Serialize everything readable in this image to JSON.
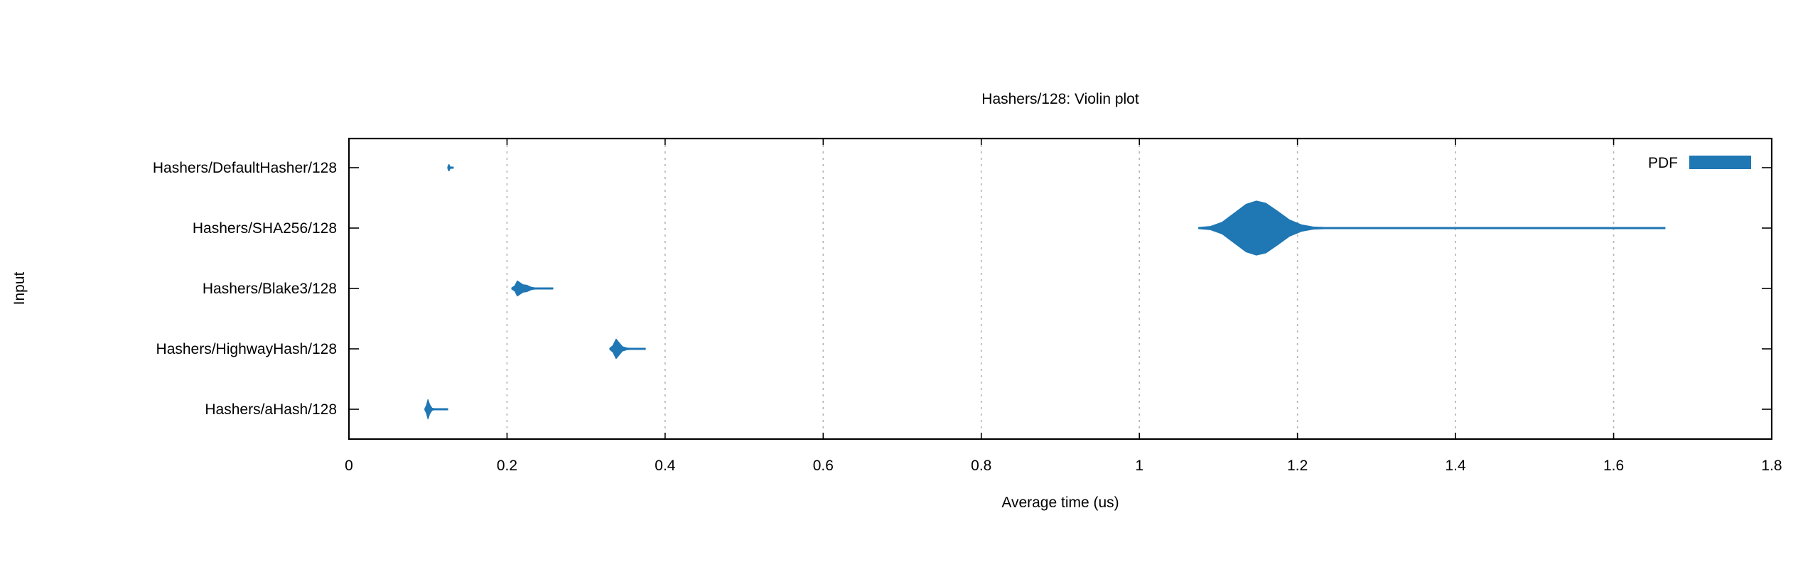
{
  "chart_data": {
    "type": "violin",
    "title": "Hashers/128: Violin plot",
    "xlabel": "Average time (us)",
    "ylabel": "Input",
    "xlim": [
      0,
      1.8
    ],
    "x_ticks": [
      0,
      0.2,
      0.4,
      0.6,
      0.8,
      1,
      1.2,
      1.4,
      1.6,
      1.8
    ],
    "x_tick_labels": [
      "0",
      "0.2",
      "0.4",
      "0.6",
      "0.8",
      "1",
      "1.2",
      "1.4",
      "1.6",
      "1.8"
    ],
    "grid": "vertical dotted",
    "legend": {
      "placement": "top-right",
      "entries": [
        {
          "label": "PDF",
          "color": "#1f77b4"
        }
      ]
    },
    "categories": [
      "Hashers/DefaultHasher/128",
      "Hashers/SHA256/128",
      "Hashers/Blake3/128",
      "Hashers/HighwayHash/128",
      "Hashers/aHash/128"
    ],
    "series": [
      {
        "category": "Hashers/DefaultHasher/128",
        "color": "#1f77b4",
        "pdf": [
          {
            "x": 0.125,
            "density": 0.0
          },
          {
            "x": 0.1255,
            "density": 0.06
          },
          {
            "x": 0.126,
            "density": 0.1
          },
          {
            "x": 0.1265,
            "density": 0.12
          },
          {
            "x": 0.127,
            "density": 0.1
          },
          {
            "x": 0.1275,
            "density": 0.06
          },
          {
            "x": 0.128,
            "density": 0.03
          },
          {
            "x": 0.13,
            "density": 0.01
          },
          {
            "x": 0.132,
            "density": 0.0
          }
        ]
      },
      {
        "category": "Hashers/SHA256/128",
        "color": "#1f77b4",
        "pdf": [
          {
            "x": 1.075,
            "density": 0.0
          },
          {
            "x": 1.09,
            "density": 0.06
          },
          {
            "x": 1.105,
            "density": 0.22
          },
          {
            "x": 1.12,
            "density": 0.55
          },
          {
            "x": 1.135,
            "density": 0.88
          },
          {
            "x": 1.148,
            "density": 1.0
          },
          {
            "x": 1.16,
            "density": 0.92
          },
          {
            "x": 1.175,
            "density": 0.62
          },
          {
            "x": 1.19,
            "density": 0.3
          },
          {
            "x": 1.205,
            "density": 0.12
          },
          {
            "x": 1.22,
            "density": 0.04
          },
          {
            "x": 1.235,
            "density": 0.0
          },
          {
            "x": 1.32,
            "density": 0.0
          },
          {
            "x": 1.33,
            "density": 0.02
          },
          {
            "x": 1.34,
            "density": 0.0
          },
          {
            "x": 1.645,
            "density": 0.0
          },
          {
            "x": 1.655,
            "density": 0.02
          },
          {
            "x": 1.665,
            "density": 0.0
          }
        ]
      },
      {
        "category": "Hashers/Blake3/128",
        "color": "#1f77b4",
        "pdf": [
          {
            "x": 0.206,
            "density": 0.0
          },
          {
            "x": 0.21,
            "density": 0.1
          },
          {
            "x": 0.213,
            "density": 0.28
          },
          {
            "x": 0.216,
            "density": 0.22
          },
          {
            "x": 0.22,
            "density": 0.14
          },
          {
            "x": 0.225,
            "density": 0.12
          },
          {
            "x": 0.23,
            "density": 0.05
          },
          {
            "x": 0.235,
            "density": 0.0
          },
          {
            "x": 0.255,
            "density": 0.0
          },
          {
            "x": 0.256,
            "density": 0.02
          },
          {
            "x": 0.258,
            "density": 0.0
          }
        ]
      },
      {
        "category": "Hashers/HighwayHash/128",
        "color": "#1f77b4",
        "pdf": [
          {
            "x": 0.33,
            "density": 0.0
          },
          {
            "x": 0.334,
            "density": 0.12
          },
          {
            "x": 0.338,
            "density": 0.36
          },
          {
            "x": 0.342,
            "density": 0.22
          },
          {
            "x": 0.346,
            "density": 0.08
          },
          {
            "x": 0.352,
            "density": 0.03
          },
          {
            "x": 0.356,
            "density": 0.0
          },
          {
            "x": 0.37,
            "density": 0.0
          },
          {
            "x": 0.372,
            "density": 0.02
          },
          {
            "x": 0.375,
            "density": 0.0
          }
        ]
      },
      {
        "category": "Hashers/aHash/128",
        "color": "#1f77b4",
        "pdf": [
          {
            "x": 0.096,
            "density": 0.0
          },
          {
            "x": 0.098,
            "density": 0.14
          },
          {
            "x": 0.1,
            "density": 0.36
          },
          {
            "x": 0.102,
            "density": 0.18
          },
          {
            "x": 0.105,
            "density": 0.04
          },
          {
            "x": 0.108,
            "density": 0.0
          },
          {
            "x": 0.12,
            "density": 0.0
          },
          {
            "x": 0.122,
            "density": 0.02
          },
          {
            "x": 0.125,
            "density": 0.0
          }
        ]
      }
    ]
  }
}
